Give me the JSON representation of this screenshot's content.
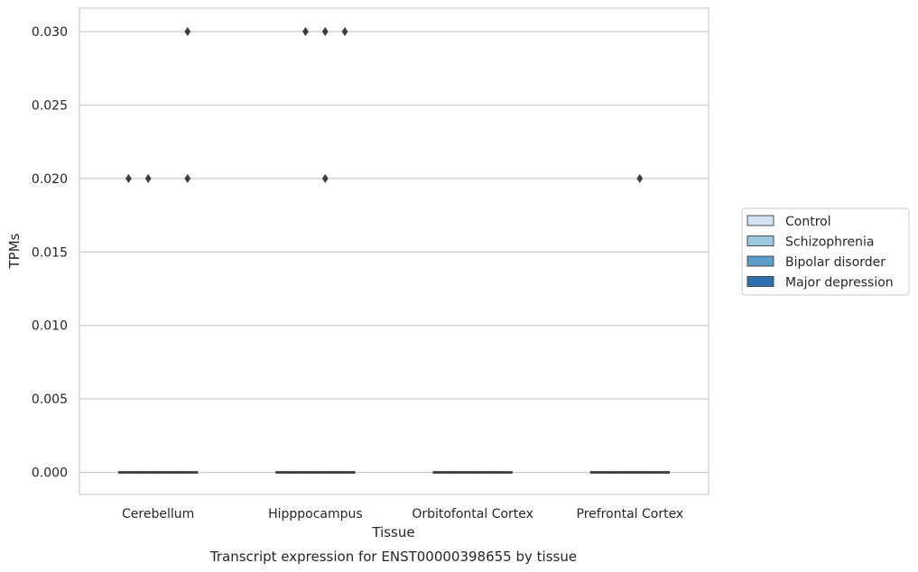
{
  "chart_data": {
    "type": "box",
    "title": "",
    "xlabel": "Tissue",
    "ylabel": "TPMs",
    "caption": "Transcript expression for ENST00000398655 by tissue",
    "ylim": [
      -0.0015,
      0.0316
    ],
    "yticks": [
      0.0,
      0.005,
      0.01,
      0.015,
      0.02,
      0.025,
      0.03
    ],
    "ytick_labels": [
      "0.000",
      "0.005",
      "0.010",
      "0.015",
      "0.020",
      "0.025",
      "0.030"
    ],
    "grid": true,
    "legend_position": "right",
    "categories": [
      "Cerebellum",
      "Hipppocampus",
      "Orbitofontal Cortex",
      "Prefrontal Cortex"
    ],
    "series": [
      {
        "name": "Control",
        "color": "#d1e2f2",
        "boxes": [
          {
            "median": 0,
            "q1": 0,
            "q3": 0
          },
          {
            "median": 0,
            "q1": 0,
            "q3": 0
          },
          {
            "median": 0,
            "q1": 0,
            "q3": 0
          },
          {
            "median": 0,
            "q1": 0,
            "q3": 0
          }
        ],
        "outliers": [
          [
            0.02
          ],
          [],
          [],
          []
        ]
      },
      {
        "name": "Schizophrenia",
        "color": "#9ac8e0",
        "boxes": [
          {
            "median": 0,
            "q1": 0,
            "q3": 0
          },
          {
            "median": 0,
            "q1": 0,
            "q3": 0
          },
          {
            "median": 0,
            "q1": 0,
            "q3": 0
          },
          {
            "median": 0,
            "q1": 0,
            "q3": 0
          }
        ],
        "outliers": [
          [
            0.02
          ],
          [
            0.03
          ],
          [],
          []
        ]
      },
      {
        "name": "Bipolar disorder",
        "color": "#5a9ec9",
        "boxes": [
          {
            "median": 0,
            "q1": 0,
            "q3": 0
          },
          {
            "median": 0,
            "q1": 0,
            "q3": 0
          },
          {
            "median": 0,
            "q1": 0,
            "q3": 0
          },
          {
            "median": 0,
            "q1": 0,
            "q3": 0
          }
        ],
        "outliers": [
          [],
          [
            0.03,
            0.02
          ],
          [],
          [
            0.02
          ]
        ]
      },
      {
        "name": "Major depression",
        "color": "#2d6faf",
        "boxes": [
          {
            "median": 0,
            "q1": 0,
            "q3": 0
          },
          {
            "median": 0,
            "q1": 0,
            "q3": 0
          },
          {
            "median": 0,
            "q1": 0,
            "q3": 0
          },
          {
            "median": 0,
            "q1": 0,
            "q3": 0
          }
        ],
        "outliers": [
          [
            0.03,
            0.02
          ],
          [
            0.03
          ],
          [],
          []
        ]
      }
    ]
  }
}
